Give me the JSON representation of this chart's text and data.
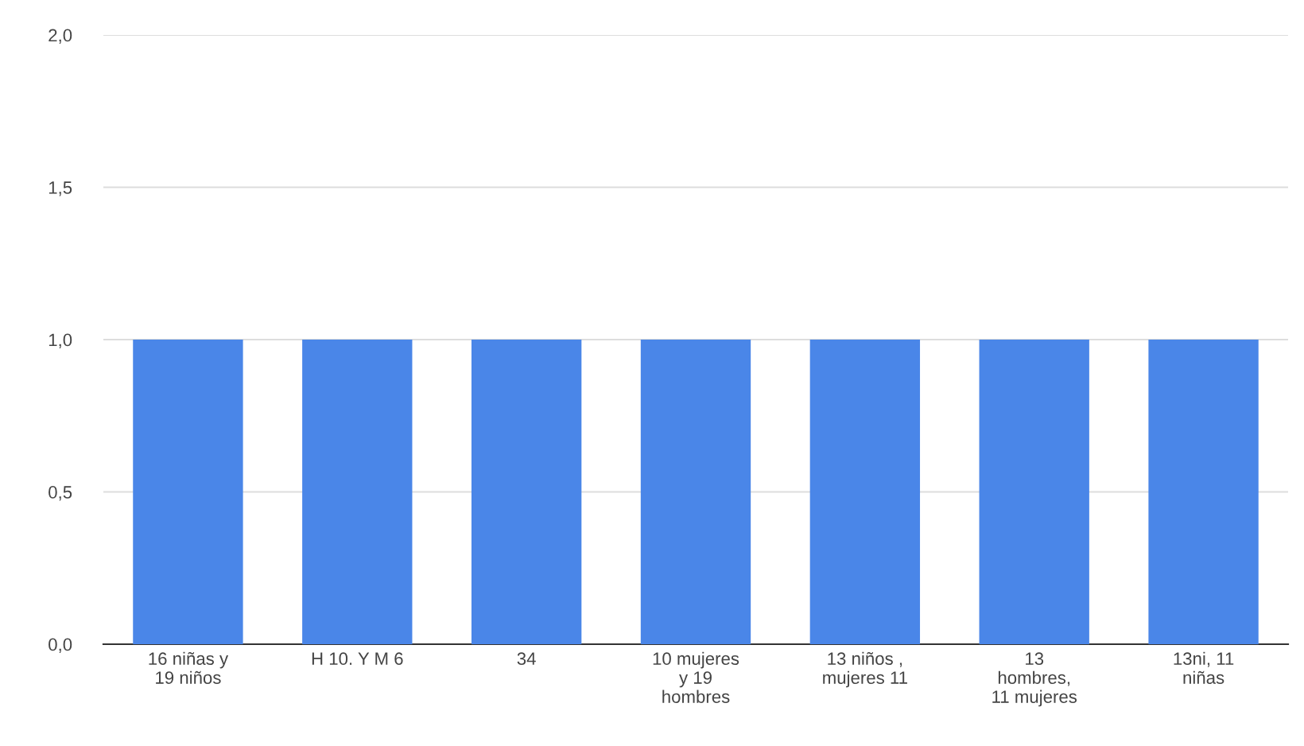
{
  "chart_data": {
    "type": "bar",
    "categories": [
      "16 niñas y\n19 niños",
      "H 10. Y M 6",
      "34",
      "10 mujeres\ny 19\nhombres",
      "13 niños ,\nmujeres 11",
      "13\nhombres,\n11 mujeres",
      "13ni, 11\nniñas"
    ],
    "values": [
      1,
      1,
      1,
      1,
      1,
      1,
      1
    ],
    "color": "#4a86e8",
    "ylim": [
      0,
      2
    ],
    "yticks": [
      {
        "value": 0,
        "label": "0,0"
      },
      {
        "value": 0.5,
        "label": "0,5"
      },
      {
        "value": 1,
        "label": "1,0"
      },
      {
        "value": 1.5,
        "label": "1,5"
      },
      {
        "value": 2,
        "label": "2,0"
      }
    ],
    "grid": "y",
    "legend": false
  }
}
